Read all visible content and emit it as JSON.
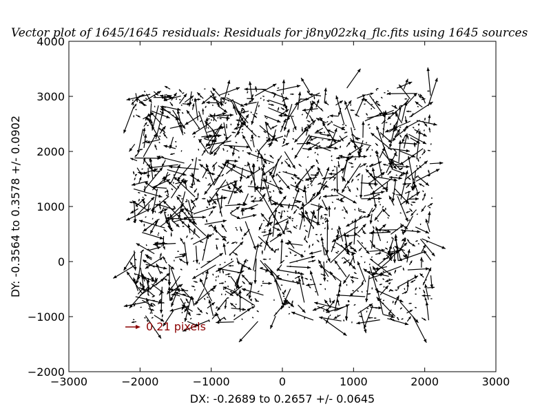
{
  "chart_data": {
    "type": "vector",
    "title": "Vector plot of 1645/1645 residuals: Residuals for j8ny02zkq_flc.fits using 1645 sources",
    "xlabel": "DX: -0.2689 to 0.2657 +/- 0.0645",
    "ylabel": "DY: -0.3564 to 0.3578 +/- 0.0902",
    "xlim": [
      -3000,
      3000
    ],
    "ylim": [
      -2000,
      4000
    ],
    "xticks": [
      -3000,
      -2000,
      -1000,
      0,
      1000,
      2000,
      3000
    ],
    "yticks": [
      -2000,
      -1000,
      0,
      1000,
      2000,
      3000,
      4000
    ],
    "xtick_labels": [
      "−3000",
      "−2000",
      "−1000",
      "0",
      "1000",
      "2000",
      "3000"
    ],
    "ytick_labels": [
      "−2000",
      "−1000",
      "0",
      "1000",
      "2000",
      "3000",
      "4000"
    ],
    "grid": false,
    "source_count": 1645,
    "source_region": {
      "x": [
        -2100,
        2100
      ],
      "y": [
        -1100,
        3150
      ]
    },
    "key": {
      "label": "0.21 pixels",
      "color": "#8b0000",
      "position": "lower-left"
    },
    "vector_color": "#000000"
  }
}
